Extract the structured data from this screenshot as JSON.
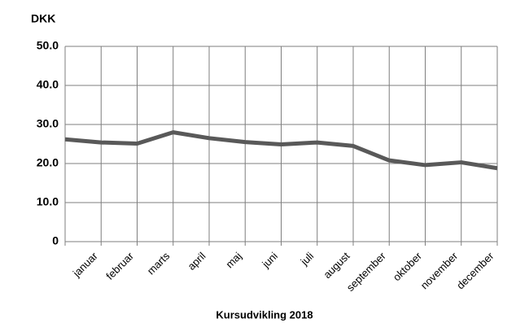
{
  "chart_data": {
    "type": "line",
    "title": "Kursudvikling 2018",
    "y_label": "DKK",
    "categories": [
      null,
      "januar",
      "februar",
      "marts",
      "april",
      "maj",
      "juni",
      "juli",
      "august",
      "september",
      "oktober",
      "november",
      "december"
    ],
    "series": [
      {
        "name": null,
        "color": "#595959",
        "values": [
          26.2,
          25.4,
          25.1,
          28.0,
          26.5,
          25.5,
          24.9,
          25.4,
          24.5,
          20.8,
          19.6,
          20.3,
          18.8
        ]
      }
    ],
    "ylim": [
      0,
      50
    ],
    "yticks": [
      0,
      {
        "value": 10,
        "label": "10.0"
      },
      {
        "value": 20,
        "label": "20.0"
      },
      {
        "value": 30,
        "label": "30.0"
      },
      {
        "value": 40,
        "label": "40.0"
      },
      {
        "value": 50,
        "label": "50.0"
      }
    ],
    "grid": true
  }
}
